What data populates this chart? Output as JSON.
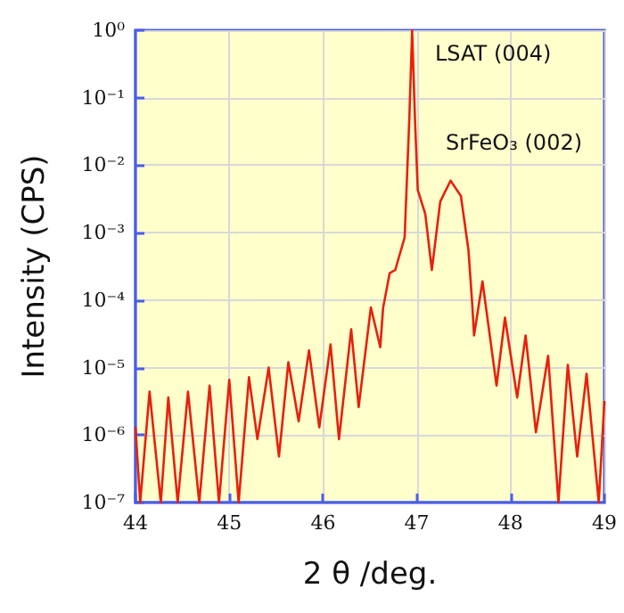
{
  "chart_data": {
    "type": "line",
    "xlabel": "2 θ /deg.",
    "ylabel": "Intensity (CPS)",
    "log": "y",
    "grid": true,
    "xlim": [
      44,
      49
    ],
    "xticks": [
      44,
      45,
      46,
      47,
      48,
      49
    ],
    "ylim": [
      1e-07,
      1
    ],
    "yticks": [
      {
        "value": 1e-07,
        "label": "10⁻⁷"
      },
      {
        "value": 1e-06,
        "label": "10⁻⁶"
      },
      {
        "value": 1e-05,
        "label": "10⁻⁵"
      },
      {
        "value": 0.0001,
        "label": "10⁻⁴"
      },
      {
        "value": 0.001,
        "label": "10⁻³"
      },
      {
        "value": 0.01,
        "label": "10⁻²"
      },
      {
        "value": 0.1,
        "label": "10⁻¹"
      },
      {
        "value": 1,
        "label": "10⁰"
      }
    ],
    "annotations": [
      "LSAT (004)",
      "SrFeO₃ (002)"
    ],
    "series": [
      {
        "color": "#e8200c",
        "x": [
          44.0,
          44.05,
          44.15,
          44.27,
          44.35,
          44.45,
          44.56,
          44.68,
          44.79,
          44.89,
          45.0,
          45.1,
          45.21,
          45.3,
          45.42,
          45.53,
          45.63,
          45.74,
          45.85,
          45.96,
          46.08,
          46.17,
          46.3,
          46.38,
          46.51,
          46.61,
          46.64,
          46.71,
          46.77,
          46.87,
          46.92,
          46.95,
          46.98,
          47.01,
          47.09,
          47.16,
          47.25,
          47.36,
          47.47,
          47.55,
          47.59,
          47.61,
          47.7,
          47.85,
          47.94,
          48.07,
          48.16,
          48.27,
          48.4,
          48.51,
          48.61,
          48.71,
          48.81,
          48.94,
          49.0
        ],
        "values": [
          1.3e-06,
          1e-07,
          4.4e-06,
          1e-07,
          3.6e-06,
          1e-07,
          4.4e-06,
          1e-07,
          5.4e-06,
          1e-07,
          6.6e-06,
          1e-07,
          7.2e-06,
          8.7e-07,
          1e-05,
          4.8e-07,
          1.2e-05,
          1.6e-06,
          1.8e-05,
          1.3e-06,
          2.2e-05,
          8.7e-07,
          3.7e-05,
          2.6e-06,
          7.8e-05,
          2e-05,
          7.6e-05,
          0.00025,
          0.00028,
          0.00085,
          0.049,
          1,
          0.049,
          0.0043,
          0.0019,
          0.00028,
          0.0029,
          0.0059,
          0.0035,
          0.00056,
          9.1e-05,
          3e-05,
          0.00019,
          5.4e-06,
          5.5e-05,
          3.6e-06,
          3e-05,
          1.1e-06,
          1.5e-05,
          1e-07,
          1.1e-05,
          4.8e-07,
          8.1e-06,
          1e-07,
          3.2e-06
        ]
      }
    ]
  }
}
